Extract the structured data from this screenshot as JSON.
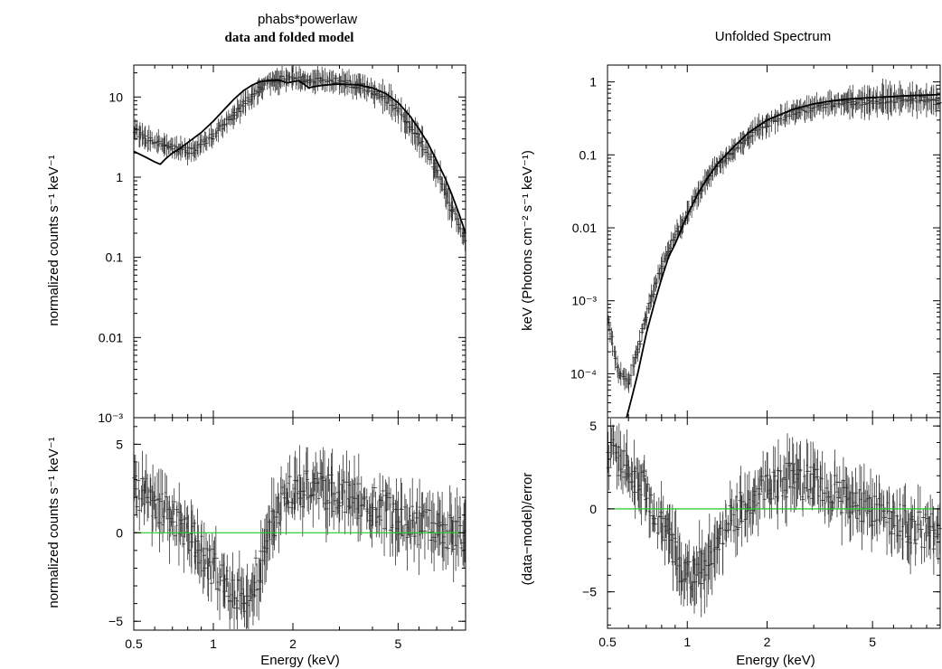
{
  "chart_data": [
    {
      "id": "left-top",
      "type": "scatter",
      "title": "phabs*powerlaw",
      "subtitle": "data and folded model",
      "ylabel": "normalized counts s⁻¹ keV⁻¹",
      "xscale": "log",
      "yscale": "log",
      "xlim": [
        0.5,
        9.0
      ],
      "ylim": [
        0.001,
        25
      ],
      "ytick_labels": [
        "10⁻³",
        "0.01",
        "0.1",
        "1",
        "10"
      ],
      "series": [
        {
          "role": "data",
          "x": [
            0.5,
            0.55,
            0.6,
            0.65,
            0.7,
            0.75,
            0.8,
            0.85,
            0.9,
            1.0,
            1.1,
            1.2,
            1.3,
            1.4,
            1.5,
            1.6,
            1.7,
            1.8,
            1.9,
            2.0,
            2.2,
            2.4,
            2.6,
            2.8,
            3.0,
            3.5,
            4.0,
            4.5,
            5.0,
            5.5,
            6.0,
            6.5,
            7.0,
            7.5,
            8.0,
            8.5,
            9.0
          ],
          "y": [
            4.0,
            3.0,
            2.7,
            2.5,
            2.3,
            2.2,
            2.1,
            2.2,
            2.6,
            3.3,
            4.5,
            6.0,
            8.0,
            10.5,
            13.0,
            15.0,
            16.0,
            16.5,
            16.8,
            17.0,
            16.5,
            16.2,
            16.0,
            15.8,
            15.5,
            14.0,
            12.0,
            9.5,
            7.0,
            4.5,
            3.0,
            2.0,
            1.2,
            0.7,
            0.4,
            0.25,
            0.15
          ]
        },
        {
          "role": "model",
          "x": [
            0.5,
            0.55,
            0.6,
            0.63,
            0.66,
            0.7,
            0.75,
            0.8,
            0.9,
            1.0,
            1.1,
            1.2,
            1.3,
            1.4,
            1.5,
            1.6,
            1.7,
            1.8,
            1.9,
            2.0,
            2.1,
            2.2,
            2.3,
            2.4,
            2.6,
            2.8,
            3.0,
            3.5,
            4.0,
            4.5,
            5.0,
            5.5,
            6.0,
            6.5,
            7.0,
            7.5,
            8.0,
            8.5,
            9.0
          ],
          "y": [
            2.1,
            1.8,
            1.55,
            1.45,
            1.7,
            2.0,
            2.3,
            2.7,
            3.6,
            5.0,
            7.0,
            9.5,
            12.0,
            14.0,
            15.5,
            16.0,
            16.2,
            16.0,
            15.0,
            15.5,
            16.0,
            14.5,
            13.0,
            13.5,
            14.0,
            14.3,
            14.5,
            14.2,
            13.0,
            11.0,
            8.5,
            6.0,
            4.0,
            2.6,
            1.6,
            1.0,
            0.6,
            0.35,
            0.2
          ]
        }
      ]
    },
    {
      "id": "left-bottom",
      "type": "scatter",
      "ylabel": "normalized counts s⁻¹ keV⁻¹",
      "xlabel": "Energy (keV)",
      "xscale": "log",
      "xlim": [
        0.5,
        9.0
      ],
      "ylim": [
        -5.5,
        6.5
      ],
      "ytick_labels": [
        "−5",
        "0",
        "5"
      ],
      "xtick_labels": [
        "0.5",
        "1",
        "2",
        "5"
      ],
      "reference_line": {
        "y": 0,
        "color": "#22cc22"
      },
      "series": [
        {
          "role": "residuals",
          "x": [
            0.5,
            0.55,
            0.6,
            0.65,
            0.7,
            0.75,
            0.8,
            0.85,
            0.9,
            0.95,
            1.0,
            1.1,
            1.2,
            1.3,
            1.4,
            1.5,
            1.6,
            1.7,
            1.8,
            1.9,
            2.0,
            2.2,
            2.4,
            2.6,
            2.8,
            3.0,
            3.5,
            4.0,
            4.5,
            5.0,
            5.5,
            6.0,
            7.0,
            8.0,
            9.0
          ],
          "y": [
            2.5,
            2.0,
            1.8,
            1.2,
            1.0,
            0.5,
            0.0,
            -0.5,
            -1.0,
            -1.5,
            -2.0,
            -2.8,
            -3.3,
            -3.5,
            -3.0,
            -2.0,
            -0.5,
            0.5,
            1.5,
            2.0,
            2.2,
            2.5,
            2.6,
            2.4,
            2.3,
            2.2,
            1.8,
            1.5,
            1.2,
            1.0,
            0.6,
            0.4,
            0.2,
            0.1,
            0.0
          ]
        }
      ]
    },
    {
      "id": "right-top",
      "type": "scatter",
      "title": "Unfolded Spectrum",
      "ylabel": "keV (Photons cm⁻² s⁻¹ keV⁻¹)",
      "xscale": "log",
      "yscale": "log",
      "xlim": [
        0.5,
        9.0
      ],
      "ylim": [
        2.5e-05,
        1.7
      ],
      "ytick_labels": [
        "10⁻⁴",
        "10⁻³",
        "0.01",
        "0.1",
        "1"
      ],
      "series": [
        {
          "role": "data",
          "x": [
            0.5,
            0.55,
            0.6,
            0.65,
            0.7,
            0.75,
            0.8,
            0.85,
            0.9,
            0.95,
            1.0,
            1.1,
            1.2,
            1.3,
            1.4,
            1.5,
            1.7,
            2.0,
            2.5,
            3.0,
            3.5,
            4.0,
            5.0,
            6.0,
            7.0,
            8.0,
            9.0
          ],
          "y": [
            0.0006,
            0.0001,
            8e-05,
            0.0002,
            0.0006,
            0.0015,
            0.003,
            0.005,
            0.008,
            0.011,
            0.015,
            0.03,
            0.05,
            0.07,
            0.09,
            0.12,
            0.18,
            0.27,
            0.38,
            0.45,
            0.5,
            0.52,
            0.55,
            0.58,
            0.6,
            0.55,
            0.5
          ]
        },
        {
          "role": "model",
          "x": [
            0.59,
            0.62,
            0.65,
            0.7,
            0.75,
            0.8,
            0.85,
            0.9,
            1.0,
            1.1,
            1.2,
            1.3,
            1.4,
            1.5,
            1.7,
            2.0,
            2.5,
            3.0,
            3.5,
            4.0,
            5.0,
            6.0,
            7.0,
            8.0,
            9.0
          ],
          "y": [
            2.5e-05,
            5e-05,
            0.0001,
            0.00035,
            0.0009,
            0.002,
            0.004,
            0.006,
            0.015,
            0.03,
            0.05,
            0.075,
            0.1,
            0.13,
            0.2,
            0.3,
            0.42,
            0.5,
            0.55,
            0.58,
            0.61,
            0.63,
            0.65,
            0.66,
            0.67
          ]
        }
      ]
    },
    {
      "id": "right-bottom",
      "type": "scatter",
      "ylabel": "(data−model)/error",
      "xlabel": "Energy (keV)",
      "xscale": "log",
      "xlim": [
        0.5,
        9.0
      ],
      "ylim": [
        -7.2,
        5.5
      ],
      "ytick_labels": [
        "−5",
        "0",
        "5"
      ],
      "xtick_labels": [
        "0.5",
        "1",
        "2",
        "5"
      ],
      "reference_line": {
        "y": 0,
        "color": "#22cc22"
      },
      "series": [
        {
          "role": "residuals",
          "x": [
            0.5,
            0.55,
            0.6,
            0.65,
            0.7,
            0.75,
            0.8,
            0.85,
            0.9,
            0.95,
            1.0,
            1.05,
            1.1,
            1.2,
            1.3,
            1.4,
            1.5,
            1.6,
            1.7,
            1.8,
            2.0,
            2.2,
            2.5,
            3.0,
            3.5,
            4.0,
            5.0,
            6.0,
            7.0,
            8.0,
            9.0
          ],
          "y": [
            3.5,
            3.0,
            2.5,
            1.8,
            1.0,
            0.0,
            -1.0,
            -1.8,
            -2.8,
            -3.6,
            -4.0,
            -4.2,
            -3.8,
            -3.0,
            -2.0,
            -1.0,
            -0.5,
            0.0,
            0.5,
            0.8,
            1.3,
            1.6,
            1.7,
            1.5,
            1.0,
            0.6,
            0.0,
            -0.5,
            -1.0,
            -1.3,
            -1.5
          ]
        }
      ]
    }
  ]
}
